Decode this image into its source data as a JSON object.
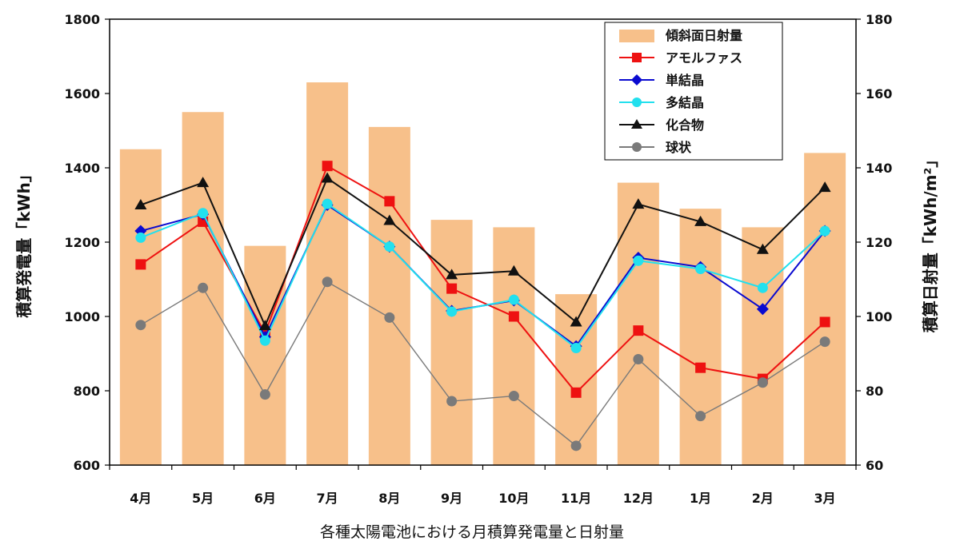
{
  "chart_data": {
    "type": "bar+line",
    "caption": "各種太陽電池における月積算発電量と日射量",
    "categories": [
      "4月",
      "5月",
      "6月",
      "7月",
      "8月",
      "9月",
      "10月",
      "11月",
      "12月",
      "1月",
      "2月",
      "3月"
    ],
    "ylabel_left": "積算発電量「kWh」",
    "ylabel_right": "積算日射量「kWh/m²」",
    "ylim_left": [
      600,
      1800
    ],
    "ylim_right": [
      60,
      180
    ],
    "yticks_left": [
      600,
      800,
      1000,
      1200,
      1400,
      1600,
      1800
    ],
    "yticks_right": [
      60,
      80,
      100,
      120,
      140,
      160,
      180
    ],
    "grid": false,
    "legend_position": "top-right",
    "bars": {
      "name": "傾斜面日射量",
      "axis": "right",
      "color": "#f7c08a",
      "values": [
        145,
        155,
        119,
        163,
        151,
        126,
        124,
        106,
        136,
        129,
        124,
        144
      ]
    },
    "series": [
      {
        "name": "アモルファス",
        "marker": "square",
        "color": "#ee1111",
        "values": [
          1140,
          1255,
          955,
          1405,
          1310,
          1075,
          1000,
          795,
          962,
          862,
          832,
          985
        ]
      },
      {
        "name": "単結晶",
        "marker": "diamond",
        "color": "#0a0ad0",
        "values": [
          1230,
          1275,
          945,
          1300,
          1188,
          1015,
          1043,
          920,
          1158,
          1133,
          1020,
          1230
        ]
      },
      {
        "name": "多結晶",
        "marker": "circle",
        "color": "#22e0ee",
        "values": [
          1212,
          1278,
          935,
          1303,
          1188,
          1013,
          1045,
          915,
          1150,
          1128,
          1077,
          1230
        ]
      },
      {
        "name": "化合物",
        "marker": "triangle",
        "color": "#111111",
        "values": [
          1300,
          1360,
          975,
          1372,
          1258,
          1112,
          1122,
          985,
          1302,
          1255,
          1180,
          1347
        ]
      },
      {
        "name": "球状",
        "marker": "circle",
        "color": "#7a7a7a",
        "values": [
          977,
          1077,
          790,
          1093,
          997,
          772,
          786,
          652,
          885,
          732,
          822,
          932
        ]
      }
    ]
  }
}
